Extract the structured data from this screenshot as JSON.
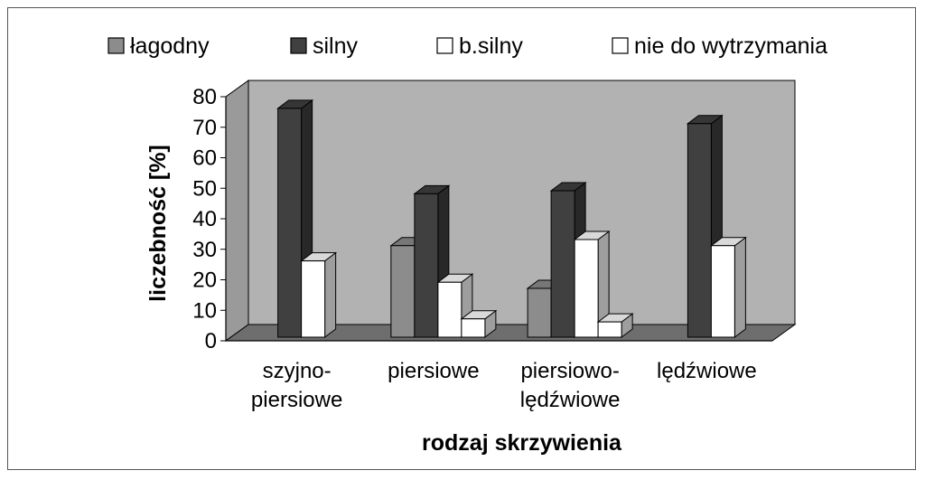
{
  "chart_data": {
    "type": "bar",
    "categories": [
      [
        "szyjno-",
        "piersiowe"
      ],
      [
        "piersiowe"
      ],
      [
        "piersiowo-",
        "lędźwiowe"
      ],
      [
        "lędźwiowe"
      ]
    ],
    "series": [
      {
        "name": "łagodny",
        "values": [
          null,
          30,
          16,
          null
        ],
        "color": "#8c8c8c"
      },
      {
        "name": "silny",
        "values": [
          75,
          47,
          48,
          70
        ],
        "color": "#404040"
      },
      {
        "name": "b.silny",
        "values": [
          25,
          18,
          32,
          30
        ],
        "color": "#ffffff"
      },
      {
        "name": "nie do wytrzymania",
        "values": [
          null,
          6,
          5,
          null
        ],
        "color": "#ffffff"
      }
    ],
    "xlabel": "rodzaj skrzywienia",
    "ylabel": "liczebność [%]",
    "yticks": [
      0,
      10,
      20,
      30,
      40,
      50,
      60,
      70,
      80
    ],
    "ylim": [
      0,
      80
    ],
    "grid": false,
    "legend_position": "top",
    "three_d": true,
    "wall_color": "#b2b2b2",
    "floor_color": "#6e6e6e"
  }
}
